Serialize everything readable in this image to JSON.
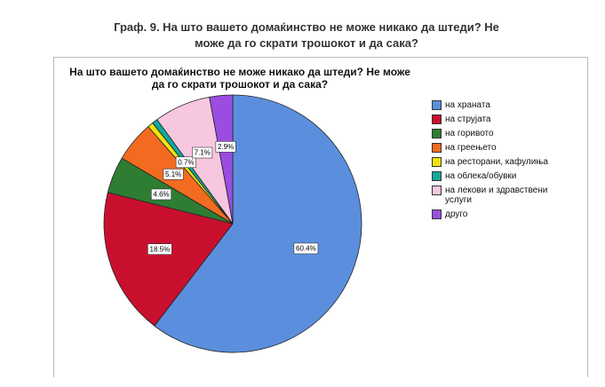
{
  "figure_caption": "Граф. 9. На што вашето домаќинство  не може никако да штеди? Не може да го скрати трошокот и да сака?",
  "chart_data": {
    "type": "pie",
    "title": "На што вашето домаќинство  не може никако да штеди? Не може да го скрати трошокот и да сака?",
    "categories": [
      "на храната",
      "на струјата",
      "на горивото",
      "на греењето",
      "на ресторани, кафулиња",
      "на облека/обувки",
      "на лекови и здравствени услуги",
      "друго"
    ],
    "values": [
      60.4,
      18.5,
      4.6,
      5.1,
      0.7,
      0.7,
      7.1,
      2.9
    ],
    "value_labels": [
      "60.4%",
      "18.5%",
      "4.6%",
      "5.1%",
      null,
      "0.7%",
      "7.1%",
      "2.9%"
    ],
    "colors": [
      "#5b8fde",
      "#c8102e",
      "#2e7d32",
      "#f26b21",
      "#f2e20c",
      "#13a89e",
      "#f7c6df",
      "#9b4de0"
    ],
    "legend": "right"
  }
}
